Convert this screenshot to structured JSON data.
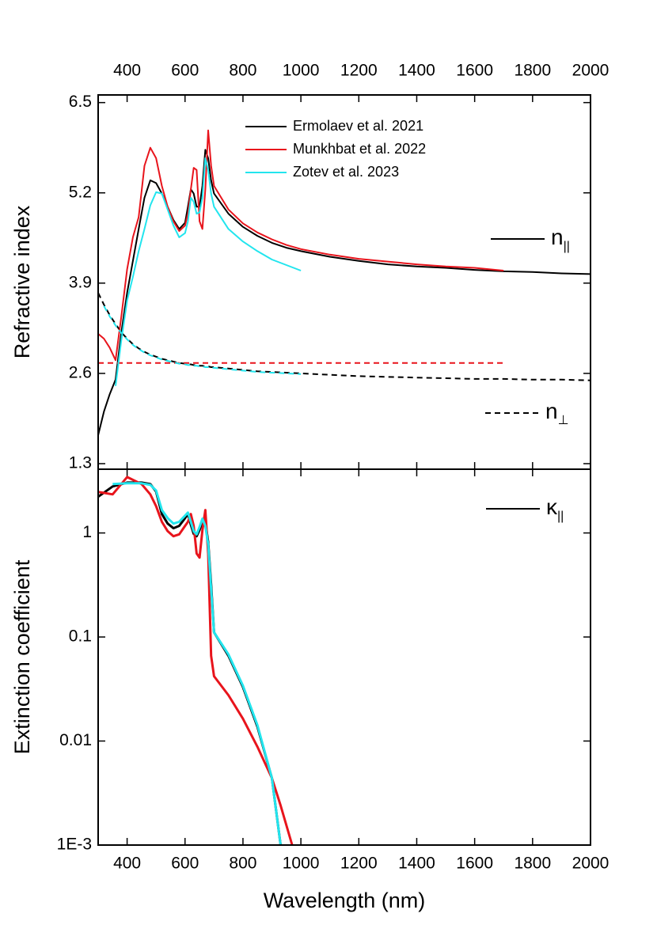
{
  "chart_data": [
    {
      "type": "line",
      "y_label": "Refractive index",
      "x": [
        300,
        320,
        340,
        360,
        380,
        400,
        420,
        440,
        460,
        480,
        500,
        520,
        540,
        560,
        580,
        600,
        610,
        620,
        630,
        640,
        650,
        660,
        670,
        680,
        690,
        700,
        750,
        800,
        850,
        900,
        950,
        1000,
        1100,
        1200,
        1300,
        1400,
        1500,
        1600,
        1700,
        1800,
        1900,
        2000
      ],
      "xlim": [
        300,
        2000
      ],
      "xticks": [
        400,
        600,
        800,
        1000,
        1200,
        1400,
        1600,
        1800,
        2000
      ],
      "ylim": [
        1.22,
        6.61
      ],
      "yticks": [
        1.3,
        2.6,
        3.9,
        5.2,
        6.5
      ],
      "legend": "upper center",
      "series": [
        {
          "name": "Ermolaev et al. 2021",
          "color": "#000000",
          "values": [
            1.71,
            2.05,
            2.3,
            2.51,
            3.19,
            3.76,
            4.22,
            4.68,
            5.13,
            5.38,
            5.34,
            5.19,
            5.0,
            4.81,
            4.68,
            4.77,
            5.0,
            5.25,
            5.19,
            5.0,
            5.0,
            5.3,
            5.82,
            5.7,
            5.38,
            5.19,
            4.9,
            4.71,
            4.58,
            4.48,
            4.41,
            4.36,
            4.28,
            4.22,
            4.17,
            4.14,
            4.12,
            4.09,
            4.07,
            4.06,
            4.04,
            4.03
          ],
          "perp_values": [
            3.76,
            3.59,
            3.44,
            3.31,
            3.19,
            3.1,
            3.02,
            2.96,
            2.91,
            2.87,
            2.84,
            2.81,
            2.79,
            2.77,
            2.75,
            2.74,
            2.73,
            2.73,
            2.72,
            2.72,
            2.71,
            2.71,
            2.7,
            2.7,
            2.69,
            2.69,
            2.67,
            2.65,
            2.63,
            2.62,
            2.61,
            2.6,
            2.58,
            2.56,
            2.55,
            2.54,
            2.53,
            2.52,
            2.52,
            2.51,
            2.51,
            2.5
          ]
        },
        {
          "name": "Munkhbat et al. 2022",
          "color": "#e8141c",
          "values": [
            3.17,
            3.1,
            2.97,
            2.79,
            3.42,
            4.1,
            4.56,
            4.85,
            5.59,
            5.85,
            5.7,
            5.3,
            5.0,
            4.79,
            4.65,
            4.73,
            4.9,
            5.25,
            5.56,
            5.53,
            4.79,
            4.68,
            5.25,
            6.1,
            5.59,
            5.3,
            4.96,
            4.76,
            4.63,
            4.53,
            4.45,
            4.39,
            4.31,
            4.25,
            4.21,
            4.17,
            4.14,
            4.12,
            4.08,
            null,
            null,
            null
          ],
          "perp_values": [
            2.75,
            2.75,
            2.75,
            2.75,
            2.75,
            2.75,
            2.75,
            2.75,
            2.75,
            2.75,
            2.75,
            2.75,
            2.75,
            2.75,
            2.75,
            2.75,
            2.75,
            2.75,
            2.75,
            2.75,
            2.75,
            2.75,
            2.75,
            2.75,
            2.75,
            2.75,
            2.75,
            2.75,
            2.75,
            2.75,
            2.75,
            2.75,
            2.75,
            2.75,
            2.75,
            2.75,
            2.75,
            2.75,
            2.75,
            null,
            null,
            null
          ]
        },
        {
          "name": "Zotev et al. 2023",
          "color": "#22e5ee",
          "values": [
            null,
            null,
            null,
            2.42,
            3.08,
            3.65,
            3.99,
            4.36,
            4.68,
            5.02,
            5.21,
            5.19,
            4.96,
            4.73,
            4.56,
            4.62,
            4.79,
            5.13,
            5.07,
            4.9,
            4.92,
            5.13,
            5.7,
            5.53,
            5.19,
            5.0,
            4.68,
            4.5,
            4.36,
            4.24,
            4.16,
            4.08,
            null,
            null,
            null,
            null,
            null,
            null,
            null,
            null,
            null,
            null
          ],
          "perp_values": [
            null,
            3.57,
            3.42,
            3.29,
            3.18,
            3.09,
            3.01,
            2.95,
            2.9,
            2.86,
            2.83,
            2.8,
            2.78,
            2.76,
            2.74,
            2.73,
            2.72,
            2.72,
            2.71,
            2.71,
            2.7,
            2.7,
            2.69,
            2.69,
            2.68,
            2.68,
            2.66,
            2.64,
            2.62,
            2.61,
            2.6,
            2.59,
            null,
            null,
            null,
            null,
            null,
            null,
            null,
            null,
            null,
            null
          ]
        }
      ],
      "annotations": [
        {
          "text": "n",
          "sub": "||",
          "dash": false
        },
        {
          "text": "n",
          "sub": "⊥",
          "dash": true
        }
      ]
    },
    {
      "type": "line",
      "log_y": true,
      "x_label": "Wavelength (nm)",
      "y_label": "Extinction coefficient",
      "x": [
        300,
        350,
        400,
        450,
        480,
        500,
        520,
        540,
        560,
        580,
        600,
        610,
        620,
        630,
        640,
        650,
        660,
        670,
        680,
        690,
        700,
        750,
        800,
        850,
        900,
        930,
        970
      ],
      "xlim": [
        300,
        2000
      ],
      "xticks": [
        400,
        600,
        800,
        1000,
        1200,
        1400,
        1600,
        1800,
        2000
      ],
      "ylim": [
        0.001,
        4.1
      ],
      "yticks": [
        {
          "value": 0.001,
          "label": "1E-3"
        },
        0.01,
        0.1,
        1
      ],
      "series": [
        {
          "name": "Ermolaev et al. 2021",
          "color": "#000000",
          "values": [
            2.23,
            2.8,
            3.05,
            3.05,
            2.95,
            2.5,
            1.52,
            1.23,
            1.11,
            1.17,
            1.39,
            1.52,
            1.2,
            0.98,
            0.93,
            1.07,
            1.28,
            1.28,
            0.82,
            0.32,
            0.111,
            0.066,
            0.033,
            0.0137,
            0.0044,
            0.001,
            null
          ]
        },
        {
          "name": "Munkhbat et al. 2022",
          "color": "#e8141c",
          "values": [
            2.48,
            2.35,
            3.45,
            2.95,
            2.35,
            1.81,
            1.28,
            1.04,
            0.93,
            0.97,
            1.17,
            1.28,
            1.52,
            1.17,
            0.635,
            0.58,
            1.06,
            1.66,
            0.635,
            0.066,
            0.042,
            0.0276,
            0.0164,
            0.0088,
            0.0044,
            0.0024,
            0.001
          ]
        },
        {
          "name": "Zotev et al. 2023",
          "color": "#22e5ee",
          "values": [
            null,
            2.95,
            3.0,
            3.0,
            2.9,
            2.56,
            1.66,
            1.39,
            1.23,
            1.28,
            1.47,
            1.57,
            1.28,
            1.04,
            0.97,
            1.14,
            1.37,
            1.17,
            0.78,
            0.29,
            0.111,
            0.068,
            0.034,
            0.0142,
            0.0044,
            0.001,
            null
          ]
        }
      ],
      "annotations": [
        {
          "text": "κ",
          "sub": "||",
          "dash": false
        }
      ]
    }
  ]
}
